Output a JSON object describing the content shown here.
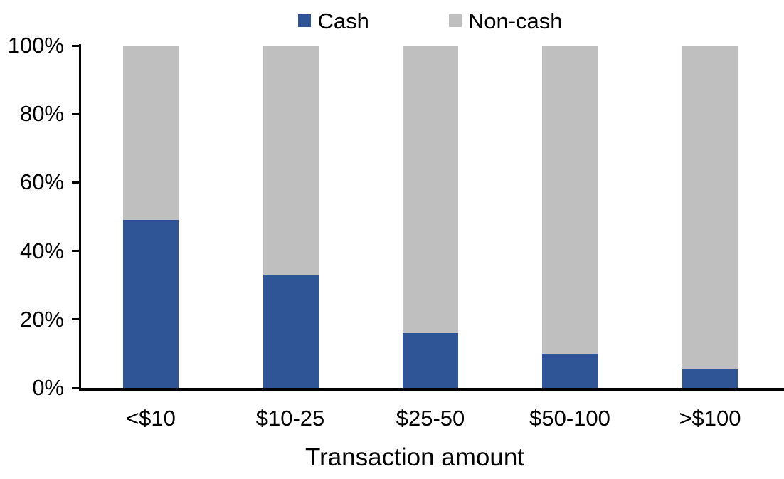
{
  "chart_data": {
    "type": "bar",
    "subtype": "stacked-100-percent",
    "title": "",
    "xlabel": "Transaction amount",
    "ylabel": "",
    "categories": [
      "<$10",
      "$10-25",
      "$25-50",
      "$50-100",
      ">$100"
    ],
    "series": [
      {
        "name": "Cash",
        "color": "#2F5597",
        "values": [
          49,
          33,
          16,
          10,
          5.5
        ]
      },
      {
        "name": "Non-cash",
        "color": "#BFBFBF",
        "values": [
          51,
          67,
          84,
          90,
          94.5
        ]
      }
    ],
    "ylim": [
      0,
      100
    ],
    "y_ticks": [
      {
        "value": 0,
        "label": "0%"
      },
      {
        "value": 20,
        "label": "20%"
      },
      {
        "value": 40,
        "label": "40%"
      },
      {
        "value": 60,
        "label": "60%"
      },
      {
        "value": 80,
        "label": "80%"
      },
      {
        "value": 100,
        "label": "100%"
      }
    ],
    "legend_position": "top",
    "grid": false,
    "axis_color": "#000000",
    "background_color": "#FFFFFF",
    "text_color": "#000000"
  }
}
